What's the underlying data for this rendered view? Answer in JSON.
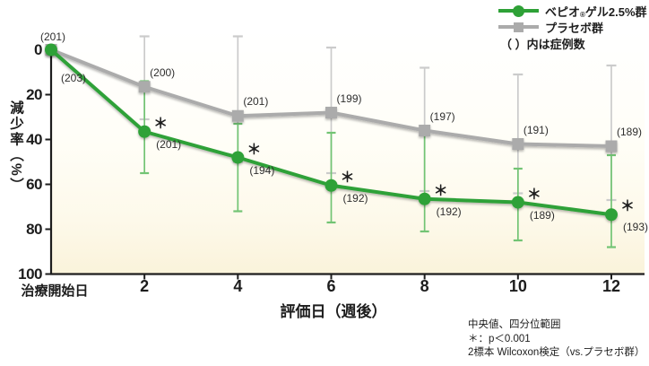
{
  "chart_data": {
    "type": "line",
    "title": "",
    "y_label": "減少率（%）",
    "x_label": "評価日（週後）",
    "x_start_label": "治療開始日",
    "x_ticks": [
      2,
      4,
      6,
      8,
      10,
      12
    ],
    "y_ticks": [
      0,
      20,
      40,
      60,
      80,
      100
    ],
    "y_range": [
      0,
      100
    ],
    "y_axis_inverted": true,
    "grid": false,
    "legend_position": "top-right",
    "legend_note": "（ ）内は症例数",
    "sig_symbol": "＊",
    "series": [
      {
        "full_name": "ベピオ®ゲル2.5%群",
        "name_brand": "ベピオ",
        "name_reg": "®",
        "name_rest": "ゲル2.5%群",
        "marker": "circle",
        "color": "#2ea137",
        "error_color": "#72c474",
        "points": [
          {
            "week": 0,
            "value": 0,
            "n": "(203)"
          },
          {
            "week": 2,
            "value": 36.5,
            "n": "(201)",
            "sig": true,
            "q1": 14,
            "q3": 55
          },
          {
            "week": 4,
            "value": 48,
            "n": "(194)",
            "sig": true,
            "q1": 33,
            "q3": 72
          },
          {
            "week": 6,
            "value": 60.5,
            "n": "(192)",
            "sig": true,
            "q1": 37,
            "q3": 77
          },
          {
            "week": 8,
            "value": 66.5,
            "n": "(192)",
            "sig": true,
            "q1": 38,
            "q3": 81
          },
          {
            "week": 10,
            "value": 68,
            "n": "(189)",
            "sig": true,
            "q1": 53,
            "q3": 85
          },
          {
            "week": 12,
            "value": 73.5,
            "n": "(193)",
            "sig": true,
            "q1": 47,
            "q3": 88
          }
        ]
      },
      {
        "full_name": "プラセボ群",
        "marker": "square",
        "color": "#ababab",
        "error_color": "#cbcbcb",
        "points": [
          {
            "week": 0,
            "value": 0,
            "n": "(201)"
          },
          {
            "week": 2,
            "value": 16.5,
            "n": "(200)",
            "q1": -6,
            "q3": 31
          },
          {
            "week": 4,
            "value": 29.5,
            "n": "(201)",
            "q1": -6,
            "q3": 50
          },
          {
            "week": 6,
            "value": 28,
            "n": "(199)",
            "q1": -1,
            "q3": 55
          },
          {
            "week": 8,
            "value": 36,
            "n": "(197)",
            "q1": 8,
            "q3": 63
          },
          {
            "week": 10,
            "value": 42,
            "n": "(191)",
            "q1": 11,
            "q3": 64
          },
          {
            "week": 12,
            "value": 43,
            "n": "(189)",
            "q1": 7,
            "q3": 67
          }
        ]
      }
    ],
    "notes": [
      "中央値、四分位範囲",
      "＊：p＜0.001",
      "2標本 Wilcoxon検定（vs.プラセボ群）"
    ]
  },
  "colors": {
    "axis": "#1d1d1d",
    "label_text": "#2e2e2e",
    "plot_bg_bottom": "#faf3da",
    "bepio_green": "#2ea137",
    "placebo_gray": "#ababab"
  }
}
